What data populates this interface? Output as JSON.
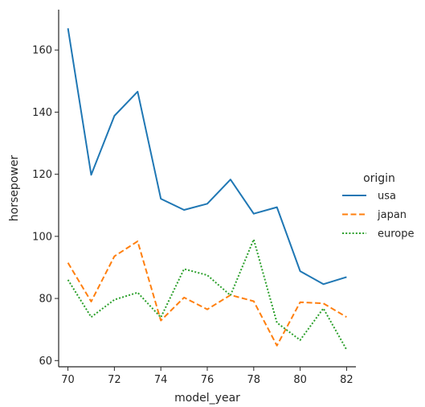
{
  "chart_data": {
    "type": "line",
    "title": "",
    "xlabel": "model_year",
    "ylabel": "horsepower",
    "xlim": [
      69.6,
      82.4
    ],
    "ylim": [
      58,
      173
    ],
    "x_ticks": [
      70,
      72,
      74,
      76,
      78,
      80,
      82
    ],
    "y_ticks": [
      60,
      80,
      100,
      120,
      140,
      160
    ],
    "grid": false,
    "legend": {
      "title": "origin",
      "placement": "right"
    },
    "x": [
      70,
      71,
      72,
      73,
      74,
      75,
      76,
      77,
      78,
      79,
      80,
      81,
      82
    ],
    "series": [
      {
        "name": "usa",
        "color": "#1f77b4",
        "dash": "solid",
        "values": [
          167,
          119.8,
          138.8,
          146.6,
          112.1,
          108.5,
          110.5,
          118.3,
          107.3,
          109.4,
          88.8,
          84.6,
          86.9
        ]
      },
      {
        "name": "japan",
        "color": "#ff7f0e",
        "dash": "dashed",
        "values": [
          91.5,
          79.0,
          93.6,
          98.4,
          72.9,
          80.3,
          76.5,
          81.1,
          79.1,
          64.8,
          78.8,
          78.4,
          74.0
        ]
      },
      {
        "name": "europe",
        "color": "#2ca02c",
        "dash": "dotted",
        "values": [
          86.0,
          74.0,
          79.6,
          81.9,
          73.9,
          89.5,
          87.5,
          81.0,
          99.0,
          72.2,
          66.6,
          76.8,
          63.5
        ]
      }
    ]
  }
}
